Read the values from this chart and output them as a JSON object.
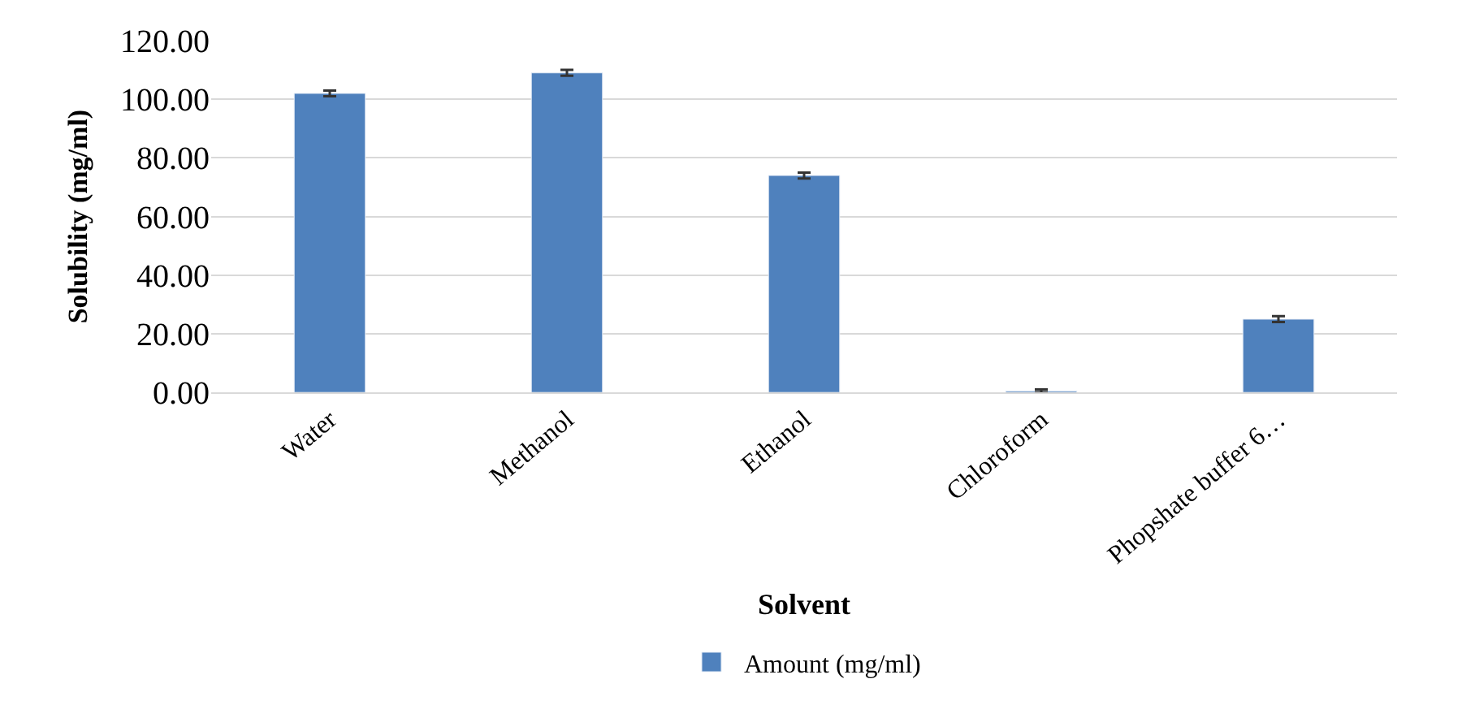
{
  "chart_data": {
    "type": "bar",
    "xlabel": "Solvent",
    "ylabel": "Solubility (mg/ml)",
    "categories": [
      "Water",
      "Methanol",
      "Ethanol",
      "Chloroform",
      "Phopshate buffer 6…"
    ],
    "series": [
      {
        "name": "Amount (mg/ml)",
        "color": "#4f81bd",
        "values": [
          102,
          109,
          74,
          0.5,
          25
        ],
        "errors": [
          1,
          1,
          1,
          0.5,
          1
        ]
      }
    ],
    "ylim": [
      0,
      120
    ],
    "yticks": [
      {
        "value": 0,
        "label": "0.00"
      },
      {
        "value": 20,
        "label": "20.00"
      },
      {
        "value": 40,
        "label": "40.00"
      },
      {
        "value": 60,
        "label": "60.00"
      },
      {
        "value": 80,
        "label": "80.00"
      },
      {
        "value": 100,
        "label": "100.00"
      },
      {
        "value": 120,
        "label": "120.00"
      }
    ],
    "grid": "y",
    "legend": "bottom"
  }
}
